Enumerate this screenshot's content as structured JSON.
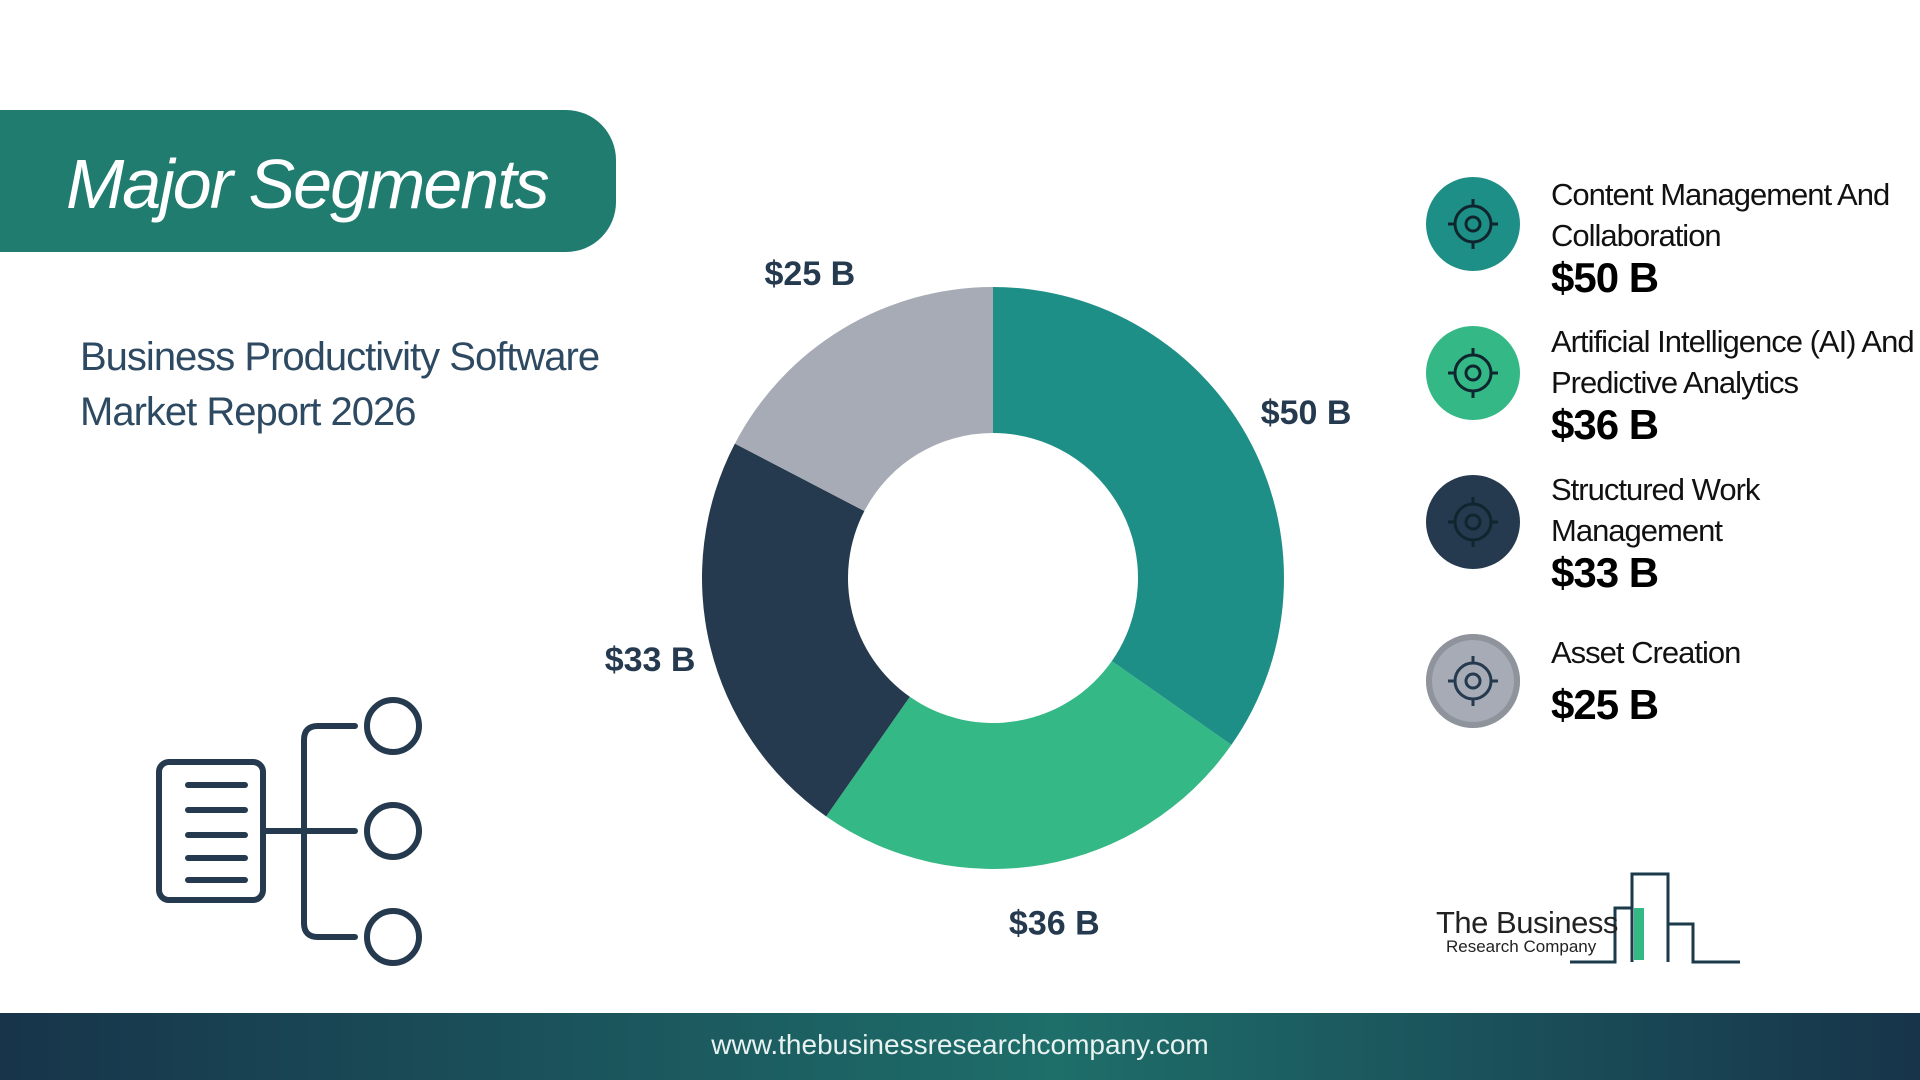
{
  "chart_data": {
    "type": "pie",
    "donut": true,
    "title": "Major Segments",
    "subtitle": "Business Productivity Software Market Report 2026",
    "categories": [
      "Content Management And Collaboration",
      "Artificial Intelligence (AI) And Predictive Analytics",
      "Structured Work Management",
      "Asset Creation"
    ],
    "values": [
      50,
      36,
      33,
      25
    ],
    "value_labels": [
      "$50 B",
      "$36 B",
      "$33 B",
      "$25 B"
    ],
    "colors": [
      "#1e8f86",
      "#34b886",
      "#253a4f",
      "#a7abb6"
    ]
  },
  "logo": {
    "name": "The Business",
    "tagline": "Research Company"
  },
  "footer": {
    "url": "www.thebusinessresearchcompany.com"
  }
}
